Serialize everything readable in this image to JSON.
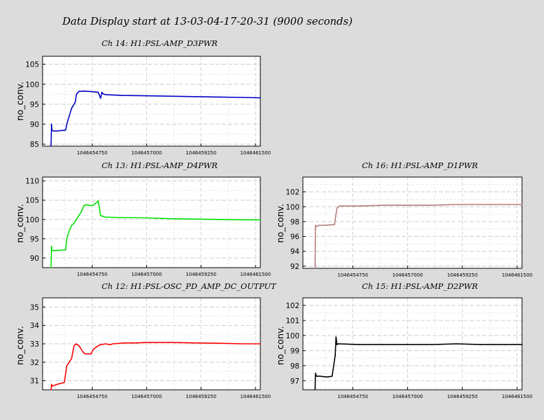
{
  "title": "Data Display start at 13-03-04-17-20-31 (9000 seconds)",
  "chart_data": [
    {
      "type": "line",
      "title": "Ch 14: H1:PSL-AMP_D3PWR",
      "ylabel": "no_conv.",
      "color": "#0000c8",
      "ylim": [
        84.5,
        107
      ],
      "yticks": [
        85,
        90,
        95,
        100,
        105
      ],
      "xlim": [
        1046452700,
        1046461700
      ],
      "xticks": [
        1046454750,
        1046457000,
        1046459250,
        1046461500
      ],
      "x": [
        1046453050,
        1046453070,
        1046453090,
        1046453150,
        1046453250,
        1046453450,
        1046453650,
        1046453700,
        1046453800,
        1046453900,
        1046453950,
        1046454050,
        1046454100,
        1046454200,
        1046454400,
        1046454600,
        1046454800,
        1046455000,
        1046455100,
        1046455150,
        1046455200,
        1046455300,
        1046456000,
        1046457000,
        1046458000,
        1046459000,
        1046460000,
        1046461000,
        1046461700
      ],
      "y": [
        84.5,
        90,
        88.5,
        88.3,
        88.3,
        88.4,
        88.5,
        90,
        92,
        94,
        94.5,
        95.5,
        97.5,
        98.2,
        98.3,
        98.2,
        98.1,
        98.0,
        96.5,
        98.0,
        97.6,
        97.4,
        97.2,
        97.1,
        97.0,
        96.9,
        96.8,
        96.7,
        96.6
      ]
    },
    {
      "type": "line",
      "title": "Ch 13: H1:PSL-AMP_D4PWR",
      "ylabel": "no_conv.",
      "color": "#00e000",
      "ylim": [
        87.5,
        111
      ],
      "yticks": [
        90,
        95,
        100,
        105,
        110
      ],
      "xlim": [
        1046452700,
        1046461700
      ],
      "xticks": [
        1046454750,
        1046457000,
        1046459250,
        1046461500
      ],
      "x": [
        1046453050,
        1046453070,
        1046453090,
        1046453200,
        1046453350,
        1046453650,
        1046453700,
        1046453800,
        1046453900,
        1046454000,
        1046454100,
        1046454200,
        1046454300,
        1046454400,
        1046454500,
        1046454600,
        1046454700,
        1046454800,
        1046455000,
        1046455100,
        1046455300,
        1046456000,
        1046457000,
        1046458000,
        1046459000,
        1046460000,
        1046461000,
        1046461700
      ],
      "y": [
        87.5,
        93,
        92,
        91.9,
        92,
        92.1,
        95,
        97,
        98.5,
        99,
        100,
        101,
        102,
        103.5,
        103.8,
        103.7,
        103.6,
        103.7,
        104.8,
        101,
        100.6,
        100.5,
        100.4,
        100.2,
        100.1,
        100.0,
        99.9,
        99.9
      ]
    },
    {
      "type": "line",
      "title": "Ch 16: H1:PSL-AMP_D1PWR",
      "ylabel": "no_conv.",
      "color": "#b47c7c",
      "ylim": [
        91.7,
        104
      ],
      "yticks": [
        92,
        94,
        96,
        98,
        100,
        102
      ],
      "xlim": [
        1046452700,
        1046461700
      ],
      "xticks": [
        1046454750,
        1046457000,
        1046459250,
        1046461500
      ],
      "x": [
        1046453200,
        1046453220,
        1046453240,
        1046453350,
        1046453600,
        1046454000,
        1046454050,
        1046454100,
        1046454200,
        1046454300,
        1046455000,
        1046456000,
        1046457000,
        1046458000,
        1046459000,
        1046460000,
        1046461000,
        1046461700
      ],
      "y": [
        91.7,
        97.5,
        97.3,
        97.5,
        97.5,
        97.6,
        98.8,
        99.8,
        100.1,
        100.1,
        100.1,
        100.2,
        100.2,
        100.2,
        100.3,
        100.3,
        100.3,
        100.3
      ]
    },
    {
      "type": "line",
      "title": "Ch 12: H1:PSL-OSC_PD_AMP_DC_OUTPUT",
      "ylabel": "no_conv.",
      "color": "#ff0000",
      "ylim": [
        30.5,
        35.5
      ],
      "yticks": [
        31,
        32,
        33,
        34,
        35
      ],
      "xlim": [
        1046452700,
        1046461700
      ],
      "xticks": [
        1046454750,
        1046457000,
        1046459250,
        1046461500
      ],
      "x": [
        1046453050,
        1046453070,
        1046453100,
        1046453300,
        1046453600,
        1046453700,
        1046453900,
        1046454000,
        1046454100,
        1046454200,
        1046454400,
        1046454500,
        1046454700,
        1046454800,
        1046455000,
        1046455100,
        1046455300,
        1046455500,
        1046455600,
        1046456100,
        1046456600,
        1046457000,
        1046458000,
        1046459000,
        1046460000,
        1046461000,
        1046461700
      ],
      "y": [
        30.5,
        30.8,
        30.7,
        30.8,
        30.9,
        31.8,
        32.2,
        32.9,
        33.0,
        32.9,
        32.5,
        32.45,
        32.45,
        32.7,
        32.9,
        32.95,
        33.0,
        32.95,
        33.0,
        33.05,
        33.05,
        33.08,
        33.08,
        33.05,
        33.03,
        33.0,
        33.0
      ]
    },
    {
      "type": "line",
      "title": "Ch 15: H1:PSL-AMP_D2PWR",
      "ylabel": "no_conv.",
      "color": "#000000",
      "ylim": [
        96.4,
        102.5
      ],
      "yticks": [
        97,
        98,
        99,
        100,
        101,
        102
      ],
      "xlim": [
        1046452700,
        1046461700
      ],
      "xticks": [
        1046454750,
        1046457000,
        1046459250,
        1046461500
      ],
      "x": [
        1046453200,
        1046453220,
        1046453250,
        1046453400,
        1046453700,
        1046453900,
        1046454000,
        1046454030,
        1046454060,
        1046454100,
        1046454150,
        1046455000,
        1046456000,
        1046457000,
        1046458000,
        1046459000,
        1046460000,
        1046461000,
        1046461700
      ],
      "y": [
        96.4,
        97.5,
        97.3,
        97.3,
        97.25,
        97.3,
        98.4,
        98.7,
        99.9,
        99.4,
        99.45,
        99.4,
        99.4,
        99.4,
        99.4,
        99.45,
        99.4,
        99.4,
        99.4
      ]
    }
  ]
}
